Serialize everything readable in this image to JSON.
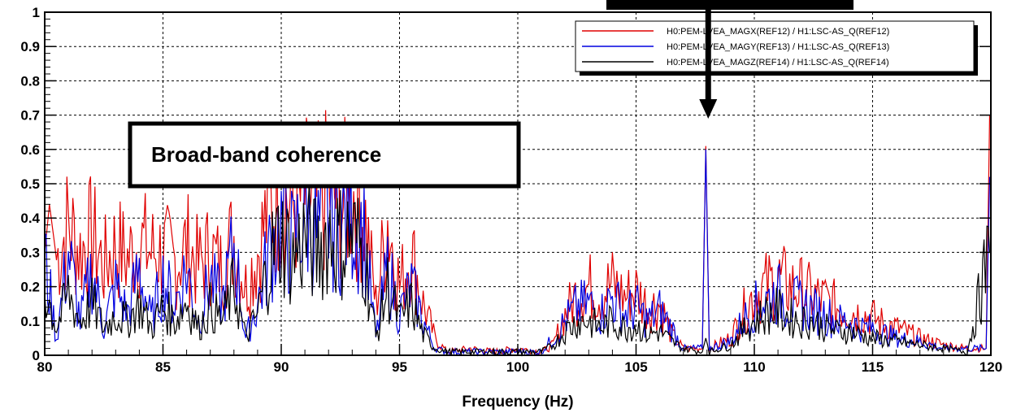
{
  "chart_data": {
    "type": "line",
    "title": "",
    "xlabel": "Frequency (Hz)",
    "ylabel": "",
    "xlim": [
      80,
      120
    ],
    "ylim": [
      0,
      1
    ],
    "x_ticks": [
      "80",
      "85",
      "90",
      "95",
      "100",
      "105",
      "110",
      "115",
      "120"
    ],
    "y_ticks": [
      "0",
      "0.1",
      "0.2",
      "0.3",
      "0.4",
      "0.5",
      "0.6",
      "0.7",
      "0.8",
      "0.9",
      "1"
    ],
    "grid": true,
    "legend_position": "top-right",
    "annotations": [
      "Broad-band coherence"
    ],
    "series": [
      {
        "name": "H0:PEM-LVEA_MAGX(REF12) / H1:LSC-AS_Q(REF12)",
        "color": "#e00000",
        "points": [
          [
            80,
            0.3
          ],
          [
            80.2,
            0.44
          ],
          [
            80.5,
            0.28
          ],
          [
            81,
            0.38
          ],
          [
            81.5,
            0.3
          ],
          [
            82,
            0.35
          ],
          [
            82.5,
            0.26
          ],
          [
            83,
            0.32
          ],
          [
            83.5,
            0.28
          ],
          [
            84,
            0.33
          ],
          [
            84.5,
            0.3
          ],
          [
            85,
            0.3
          ],
          [
            85.5,
            0.27
          ],
          [
            86,
            0.32
          ],
          [
            86.5,
            0.26
          ],
          [
            87,
            0.3
          ],
          [
            87.5,
            0.25
          ],
          [
            88,
            0.35
          ],
          [
            88.5,
            0.2
          ],
          [
            89,
            0.3
          ],
          [
            89.5,
            0.43
          ],
          [
            90,
            0.47
          ],
          [
            90.5,
            0.43
          ],
          [
            91,
            0.46
          ],
          [
            91.5,
            0.44
          ],
          [
            92,
            0.48
          ],
          [
            92.5,
            0.44
          ],
          [
            93,
            0.47
          ],
          [
            93.5,
            0.42
          ],
          [
            94,
            0.15
          ],
          [
            94.5,
            0.4
          ],
          [
            95,
            0.2
          ],
          [
            95.5,
            0.3
          ],
          [
            96,
            0.15
          ],
          [
            96.5,
            0.05
          ],
          [
            97,
            0.01
          ],
          [
            98,
            0.02
          ],
          [
            99,
            0.01
          ],
          [
            100,
            0.02
          ],
          [
            101,
            0.01
          ],
          [
            101.5,
            0.03
          ],
          [
            102,
            0.12
          ],
          [
            102.5,
            0.18
          ],
          [
            103,
            0.2
          ],
          [
            103.5,
            0.18
          ],
          [
            104,
            0.21
          ],
          [
            104.5,
            0.17
          ],
          [
            105,
            0.19
          ],
          [
            105.5,
            0.14
          ],
          [
            106,
            0.15
          ],
          [
            106.5,
            0.06
          ],
          [
            107,
            0.02
          ],
          [
            107.8,
            0.02
          ],
          [
            107.95,
            0.61
          ],
          [
            108.1,
            0.02
          ],
          [
            109,
            0.05
          ],
          [
            109.5,
            0.12
          ],
          [
            110,
            0.18
          ],
          [
            110.5,
            0.2
          ],
          [
            111,
            0.22
          ],
          [
            111.5,
            0.2
          ],
          [
            112,
            0.19
          ],
          [
            112.5,
            0.17
          ],
          [
            113,
            0.16
          ],
          [
            113.5,
            0.14
          ],
          [
            114,
            0.13
          ],
          [
            114.5,
            0.12
          ],
          [
            115,
            0.11
          ],
          [
            115.5,
            0.09
          ],
          [
            116,
            0.08
          ],
          [
            117,
            0.05
          ],
          [
            118,
            0.03
          ],
          [
            119,
            0.02
          ],
          [
            119.8,
            0.02
          ],
          [
            119.95,
            0.7
          ]
        ]
      },
      {
        "name": "H0:PEM-LVEA_MAGY(REF13) / H1:LSC-AS_Q(REF13)",
        "color": "#0000e0",
        "points": [
          [
            80,
            0.28
          ],
          [
            80.5,
            0.05
          ],
          [
            81,
            0.3
          ],
          [
            81.5,
            0.1
          ],
          [
            82,
            0.25
          ],
          [
            82.5,
            0.08
          ],
          [
            83,
            0.2
          ],
          [
            83.5,
            0.12
          ],
          [
            84,
            0.25
          ],
          [
            84.5,
            0.1
          ],
          [
            85,
            0.22
          ],
          [
            85.5,
            0.15
          ],
          [
            86,
            0.25
          ],
          [
            86.5,
            0.1
          ],
          [
            87,
            0.22
          ],
          [
            87.5,
            0.15
          ],
          [
            88,
            0.32
          ],
          [
            88.5,
            0.05
          ],
          [
            89,
            0.15
          ],
          [
            89.5,
            0.3
          ],
          [
            90,
            0.38
          ],
          [
            90.5,
            0.32
          ],
          [
            91,
            0.42
          ],
          [
            91.5,
            0.35
          ],
          [
            92,
            0.4
          ],
          [
            92.5,
            0.38
          ],
          [
            93,
            0.42
          ],
          [
            93.5,
            0.35
          ],
          [
            94,
            0.05
          ],
          [
            94.5,
            0.25
          ],
          [
            95,
            0.12
          ],
          [
            95.5,
            0.2
          ],
          [
            96,
            0.1
          ],
          [
            96.5,
            0.02
          ],
          [
            97,
            0.01
          ],
          [
            98,
            0.01
          ],
          [
            100,
            0.01
          ],
          [
            101,
            0.01
          ],
          [
            101.5,
            0.05
          ],
          [
            102,
            0.1
          ],
          [
            102.5,
            0.14
          ],
          [
            103,
            0.15
          ],
          [
            103.5,
            0.12
          ],
          [
            104,
            0.17
          ],
          [
            104.5,
            0.12
          ],
          [
            105,
            0.14
          ],
          [
            105.5,
            0.1
          ],
          [
            106,
            0.13
          ],
          [
            106.5,
            0.08
          ],
          [
            107,
            0.02
          ],
          [
            107.8,
            0.02
          ],
          [
            107.95,
            0.6
          ],
          [
            108.1,
            0.02
          ],
          [
            109,
            0.04
          ],
          [
            109.5,
            0.1
          ],
          [
            110,
            0.14
          ],
          [
            110.5,
            0.16
          ],
          [
            111,
            0.18
          ],
          [
            111.5,
            0.15
          ],
          [
            112,
            0.15
          ],
          [
            112.5,
            0.13
          ],
          [
            113,
            0.12
          ],
          [
            113.5,
            0.1
          ],
          [
            114,
            0.1
          ],
          [
            114.5,
            0.08
          ],
          [
            115,
            0.08
          ],
          [
            116,
            0.05
          ],
          [
            117,
            0.04
          ],
          [
            118,
            0.02
          ],
          [
            119,
            0.02
          ],
          [
            119.8,
            0.02
          ],
          [
            119.95,
            0.52
          ]
        ]
      },
      {
        "name": "H0:PEM-LVEA_MAGZ(REF14) / H1:LSC-AS_Q(REF14)",
        "color": "#000000",
        "points": [
          [
            80,
            0.2
          ],
          [
            80.5,
            0.08
          ],
          [
            81,
            0.18
          ],
          [
            81.5,
            0.1
          ],
          [
            82,
            0.15
          ],
          [
            82.5,
            0.08
          ],
          [
            83,
            0.12
          ],
          [
            83.5,
            0.1
          ],
          [
            84,
            0.15
          ],
          [
            84.5,
            0.08
          ],
          [
            85,
            0.14
          ],
          [
            85.5,
            0.1
          ],
          [
            86,
            0.16
          ],
          [
            86.5,
            0.08
          ],
          [
            87,
            0.14
          ],
          [
            87.5,
            0.1
          ],
          [
            88,
            0.2
          ],
          [
            88.5,
            0.05
          ],
          [
            89,
            0.12
          ],
          [
            89.5,
            0.28
          ],
          [
            90,
            0.35
          ],
          [
            90.5,
            0.28
          ],
          [
            91,
            0.35
          ],
          [
            91.5,
            0.3
          ],
          [
            92,
            0.36
          ],
          [
            92.5,
            0.33
          ],
          [
            93,
            0.35
          ],
          [
            93.5,
            0.3
          ],
          [
            94,
            0.05
          ],
          [
            94.5,
            0.2
          ],
          [
            95,
            0.1
          ],
          [
            95.5,
            0.15
          ],
          [
            96,
            0.06
          ],
          [
            96.5,
            0.02
          ],
          [
            97,
            0.01
          ],
          [
            100,
            0.01
          ],
          [
            101,
            0.01
          ],
          [
            101.5,
            0.03
          ],
          [
            102,
            0.07
          ],
          [
            102.5,
            0.1
          ],
          [
            103,
            0.1
          ],
          [
            103.5,
            0.08
          ],
          [
            104,
            0.1
          ],
          [
            104.5,
            0.08
          ],
          [
            105,
            0.09
          ],
          [
            105.5,
            0.06
          ],
          [
            106,
            0.07
          ],
          [
            106.5,
            0.04
          ],
          [
            107,
            0.02
          ],
          [
            107.8,
            0.01
          ],
          [
            107.95,
            0.05
          ],
          [
            108.1,
            0.01
          ],
          [
            109,
            0.03
          ],
          [
            109.5,
            0.07
          ],
          [
            110,
            0.1
          ],
          [
            110.5,
            0.12
          ],
          [
            111,
            0.13
          ],
          [
            111.5,
            0.11
          ],
          [
            112,
            0.1
          ],
          [
            112.5,
            0.1
          ],
          [
            113,
            0.08
          ],
          [
            113.5,
            0.07
          ],
          [
            114,
            0.07
          ],
          [
            114.5,
            0.06
          ],
          [
            115,
            0.05
          ],
          [
            116,
            0.04
          ],
          [
            117,
            0.03
          ],
          [
            118,
            0.02
          ],
          [
            119,
            0.01
          ],
          [
            119.95,
            0.3
          ]
        ]
      }
    ]
  }
}
